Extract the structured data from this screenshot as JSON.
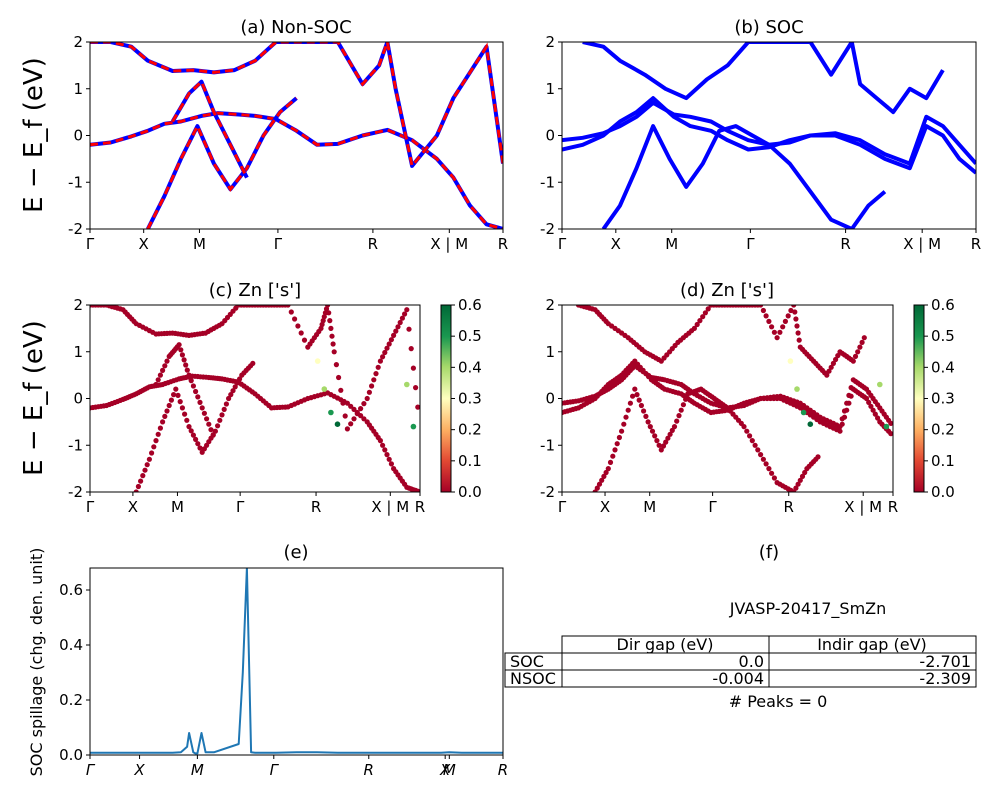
{
  "chart_data": [
    {
      "id": "a",
      "type": "line",
      "title": "(a) Non-SOC",
      "ylabel": "E − E_f (eV)",
      "ylim": [
        -2,
        2
      ],
      "yticks": [
        -2,
        -1,
        0,
        1,
        2
      ],
      "xticks": [
        "Γ",
        "X",
        "M",
        "Γ",
        "R",
        "X | M",
        "R"
      ],
      "series": [
        {
          "color": "#0000ff",
          "dashed_overlay": "#ff0000",
          "x": [
            0,
            0.05,
            0.1,
            0.14,
            0.18,
            0.22,
            0.27,
            0.31,
            0.36,
            0.4,
            0.45,
            0.5,
            0.55,
            0.6,
            0.66,
            0.72,
            0.78,
            0.84,
            0.88,
            0.92,
            0.96,
            1.0
          ],
          "y": [
            -0.2,
            -0.15,
            -0.02,
            0.1,
            0.25,
            0.3,
            0.42,
            0.48,
            0.45,
            0.42,
            0.35,
            0.1,
            -0.2,
            -0.18,
            0.0,
            0.12,
            -0.1,
            -0.5,
            -0.9,
            -1.5,
            -1.9,
            -2.0
          ]
        },
        {
          "color": "#0000ff",
          "x": [
            0,
            0.05,
            0.1,
            0.14,
            0.2,
            0.25,
            0.3,
            0.35,
            0.4,
            0.45,
            0.5,
            0.55,
            0.6,
            0.66,
            0.7,
            0.72,
            0.74,
            0.78,
            0.84,
            0.88,
            0.92,
            0.96,
            1.0
          ],
          "y": [
            2.0,
            2.0,
            1.9,
            1.6,
            1.38,
            1.4,
            1.35,
            1.4,
            1.6,
            2.0,
            2.0,
            2.0,
            2.0,
            1.1,
            1.5,
            2.0,
            1.0,
            -0.65,
            0.0,
            0.8,
            1.35,
            1.9,
            -0.6
          ]
        },
        {
          "color": "#0000ff",
          "x": [
            0.14,
            0.18,
            0.22,
            0.26,
            0.3,
            0.34,
            0.38,
            0.42,
            0.46,
            0.5
          ],
          "y": [
            -2.0,
            -1.3,
            -0.5,
            0.2,
            -0.6,
            -1.15,
            -0.7,
            0.0,
            0.5,
            0.8
          ]
        },
        {
          "color": "#0000ff",
          "x": [
            0.2,
            0.24,
            0.27,
            0.3,
            0.34,
            0.38
          ],
          "y": [
            0.3,
            0.9,
            1.15,
            0.5,
            -0.2,
            -0.9
          ]
        }
      ]
    },
    {
      "id": "b",
      "type": "line",
      "title": "(b) SOC",
      "ylim": [
        -2,
        2
      ],
      "yticks": [
        -2,
        -1,
        0,
        1,
        2
      ],
      "xticks": [
        "Γ",
        "X",
        "M",
        "Γ",
        "R",
        "X | M",
        "R"
      ],
      "series": [
        {
          "color": "#0000ff",
          "x": [
            0,
            0.05,
            0.1,
            0.14,
            0.18,
            0.22,
            0.27,
            0.31,
            0.36,
            0.4,
            0.45,
            0.5,
            0.55,
            0.6,
            0.66,
            0.72,
            0.78,
            0.84,
            0.88,
            0.92,
            0.96,
            1.0
          ],
          "y": [
            -0.1,
            -0.05,
            0.05,
            0.2,
            0.4,
            0.7,
            0.45,
            0.4,
            0.3,
            0.1,
            -0.1,
            -0.2,
            -0.15,
            0.0,
            0.05,
            -0.1,
            -0.4,
            -0.6,
            0.4,
            0.2,
            -0.2,
            -0.6
          ]
        },
        {
          "color": "#0000ff",
          "x": [
            0,
            0.05,
            0.1,
            0.14,
            0.18,
            0.22,
            0.27,
            0.31,
            0.36,
            0.4,
            0.45,
            0.5,
            0.55,
            0.6,
            0.66,
            0.72,
            0.78,
            0.84,
            0.88,
            0.92,
            0.96,
            1.0
          ],
          "y": [
            -0.3,
            -0.2,
            0.0,
            0.3,
            0.5,
            0.8,
            0.4,
            0.2,
            0.1,
            -0.1,
            -0.3,
            -0.25,
            -0.1,
            0.0,
            0.0,
            -0.2,
            -0.5,
            -0.7,
            0.2,
            0.0,
            -0.5,
            -0.8
          ]
        },
        {
          "color": "#0000ff",
          "x": [
            0.05,
            0.1,
            0.14,
            0.2,
            0.25,
            0.3,
            0.35,
            0.4,
            0.45,
            0.5,
            0.55,
            0.6,
            0.65,
            0.7,
            0.72,
            0.76,
            0.8,
            0.84,
            0.88,
            0.92
          ],
          "y": [
            2.0,
            1.9,
            1.6,
            1.3,
            1.0,
            0.8,
            1.2,
            1.5,
            2.0,
            2.0,
            2.0,
            2.0,
            1.3,
            2.0,
            1.1,
            0.8,
            0.5,
            1.0,
            0.8,
            1.4
          ]
        },
        {
          "color": "#0000ff",
          "x": [
            0.1,
            0.14,
            0.18,
            0.22,
            0.26,
            0.3,
            0.34,
            0.38,
            0.42,
            0.46,
            0.5,
            0.55,
            0.6,
            0.65,
            0.7,
            0.74,
            0.78
          ],
          "y": [
            -2.0,
            -1.5,
            -0.7,
            0.2,
            -0.5,
            -1.1,
            -0.6,
            0.1,
            0.2,
            0.0,
            -0.2,
            -0.6,
            -1.2,
            -1.8,
            -2.0,
            -1.5,
            -1.2
          ]
        }
      ]
    },
    {
      "id": "c",
      "type": "scatter",
      "title": "(c)  Zn ['s']",
      "ylabel": "E − E_f (eV)",
      "ylim": [
        -2,
        2
      ],
      "yticks": [
        -2,
        -1,
        0,
        1,
        2
      ],
      "xticks": [
        "Γ",
        "X",
        "M",
        "Γ",
        "R",
        "X | M",
        "R"
      ],
      "colorbar": {
        "min": 0.0,
        "max": 0.6,
        "ticks": [
          "0.0",
          "0.1",
          "0.2",
          "0.3",
          "0.4",
          "0.5",
          "0.6"
        ],
        "colormap": "RdYlGn"
      }
    },
    {
      "id": "d",
      "type": "scatter",
      "title": "(d) Zn ['s']",
      "ylim": [
        -2,
        2
      ],
      "yticks": [
        -2,
        -1,
        0,
        1,
        2
      ],
      "xticks": [
        "Γ",
        "X",
        "M",
        "Γ",
        "R",
        "X | M",
        "R"
      ],
      "colorbar": {
        "min": 0.0,
        "max": 0.6,
        "ticks": [
          "0.0",
          "0.1",
          "0.2",
          "0.3",
          "0.4",
          "0.5",
          "0.6"
        ],
        "colormap": "RdYlGn"
      }
    },
    {
      "id": "e",
      "type": "line",
      "title": "(e)",
      "ylabel": "SOC spillage (chg. den. unit)",
      "ylim": [
        0,
        0.68
      ],
      "yticks": [
        "0.0",
        "0.2",
        "0.4",
        "0.6"
      ],
      "xticks": [
        "Γ",
        "X",
        "M",
        "Γ",
        "R",
        "X",
        "M",
        "R"
      ],
      "series": [
        {
          "color": "#1f77b4",
          "x": [
            0,
            0.05,
            0.1,
            0.2,
            0.22,
            0.235,
            0.24,
            0.25,
            0.255,
            0.26,
            0.27,
            0.28,
            0.3,
            0.36,
            0.37,
            0.38,
            0.39,
            0.4,
            0.45,
            0.5,
            0.55,
            0.6,
            0.8,
            0.85,
            0.87,
            0.9,
            1.0
          ],
          "y": [
            0.008,
            0.008,
            0.008,
            0.008,
            0.01,
            0.03,
            0.08,
            0.01,
            0.006,
            0.006,
            0.08,
            0.01,
            0.01,
            0.04,
            0.3,
            0.68,
            0.01,
            0.008,
            0.008,
            0.01,
            0.01,
            0.008,
            0.008,
            0.008,
            0.01,
            0.008,
            0.008
          ]
        }
      ]
    }
  ],
  "panel_f": {
    "title": "(f)",
    "name": "JVASP-20417_SmZn",
    "table": {
      "headers": [
        "",
        "Dir gap (eV)",
        "Indir gap (eV)"
      ],
      "rows": [
        [
          "SOC",
          "0.0",
          "-2.701"
        ],
        [
          "NSOC",
          "-0.004",
          "-2.309"
        ]
      ]
    },
    "peaks": "# Peaks = 0"
  }
}
